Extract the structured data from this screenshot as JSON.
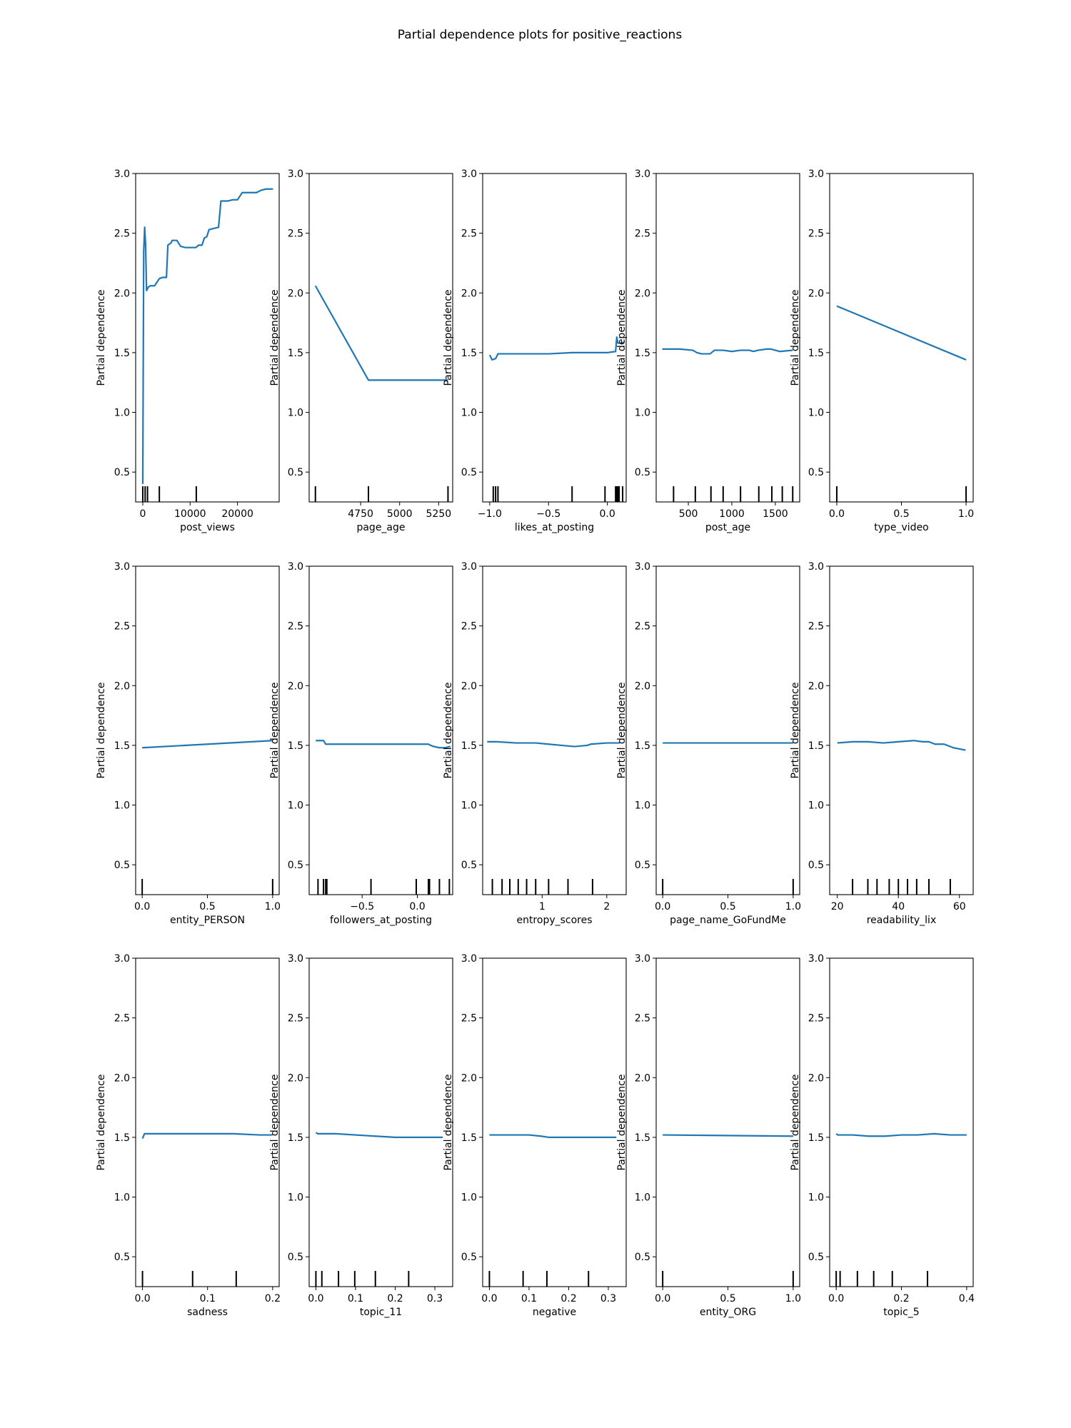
{
  "figure": {
    "title": "Partial dependence plots for positive_reactions",
    "line_color": "#1f77b4"
  },
  "chart_data": [
    {
      "type": "line",
      "xlabel": "post_views",
      "ylabel": "Partial dependence",
      "xlim": [
        -1500,
        28800
      ],
      "ylim": [
        0.25,
        3.0
      ],
      "xticks": [
        0,
        10000,
        20000
      ],
      "xtick_labels": [
        "0",
        "10000",
        "20000"
      ],
      "yticks": [
        0.5,
        1.0,
        1.5,
        2.0,
        2.5,
        3.0
      ],
      "ytick_labels": [
        "0.5",
        "1.0",
        "1.5",
        "2.0",
        "2.5",
        "3.0"
      ],
      "x": [
        0,
        200,
        400,
        600,
        800,
        1200,
        1600,
        2500,
        3500,
        4200,
        5000,
        5300,
        6000,
        6200,
        7200,
        8000,
        9000,
        10000,
        11200,
        11800,
        12500,
        13000,
        13500,
        14000,
        15000,
        16000,
        16500,
        17000,
        18000,
        19000,
        20000,
        21000,
        22000,
        23000,
        24000,
        25000,
        26000,
        27000,
        27500
      ],
      "y": [
        0.4,
        2.35,
        2.55,
        2.4,
        2.02,
        2.05,
        2.06,
        2.06,
        2.12,
        2.13,
        2.13,
        2.4,
        2.42,
        2.44,
        2.44,
        2.39,
        2.38,
        2.38,
        2.38,
        2.4,
        2.4,
        2.46,
        2.47,
        2.53,
        2.54,
        2.55,
        2.77,
        2.77,
        2.77,
        2.78,
        2.78,
        2.84,
        2.84,
        2.84,
        2.84,
        2.86,
        2.87,
        2.87,
        2.87
      ],
      "rug": [
        0,
        500,
        1000,
        3500,
        11300
      ]
    },
    {
      "type": "line",
      "xlabel": "page_age",
      "ylabel": "Partial dependence",
      "xlim": [
        4420,
        5340
      ],
      "ylim": [
        0.25,
        3.0
      ],
      "xticks": [
        4750,
        5000,
        5250
      ],
      "xtick_labels": [
        "4750",
        "5000",
        "5250"
      ],
      "yticks": [
        0.5,
        1.0,
        1.5,
        2.0,
        2.5,
        3.0
      ],
      "ytick_labels": [
        "0.5",
        "1.0",
        "1.5",
        "2.0",
        "2.5",
        "3.0"
      ],
      "x": [
        4460,
        4800,
        5310
      ],
      "y": [
        2.06,
        1.27,
        1.27
      ],
      "rug": [
        4460,
        4800,
        5310
      ]
    },
    {
      "type": "line",
      "xlabel": "likes_at_posting",
      "ylabel": "Partial dependence",
      "xlim": [
        -1.06,
        0.16
      ],
      "ylim": [
        0.25,
        3.0
      ],
      "xticks": [
        -1.0,
        -0.5,
        0.0
      ],
      "xtick_labels": [
        "−1.0",
        "−0.5",
        "0.0"
      ],
      "yticks": [
        0.5,
        1.0,
        1.5,
        2.0,
        2.5,
        3.0
      ],
      "ytick_labels": [
        "0.5",
        "1.0",
        "1.5",
        "2.0",
        "2.5",
        "3.0"
      ],
      "x": [
        -1.0,
        -0.98,
        -0.95,
        -0.93,
        -0.9,
        -0.5,
        -0.3,
        0.0,
        0.07,
        0.08,
        0.09,
        0.1,
        0.12,
        0.14
      ],
      "y": [
        1.48,
        1.44,
        1.45,
        1.49,
        1.49,
        1.49,
        1.5,
        1.5,
        1.51,
        1.63,
        1.58,
        1.58,
        1.58,
        1.59
      ],
      "rug": [
        -0.97,
        -0.95,
        -0.93,
        -0.3,
        -0.02,
        0.07,
        0.08,
        0.09,
        0.1,
        0.13
      ]
    },
    {
      "type": "line",
      "xlabel": "post_age",
      "ylabel": "Partial dependence",
      "xlim": [
        130,
        1780
      ],
      "ylim": [
        0.25,
        3.0
      ],
      "xticks": [
        500,
        1000,
        1500
      ],
      "xtick_labels": [
        "500",
        "1000",
        "1500"
      ],
      "yticks": [
        0.5,
        1.0,
        1.5,
        2.0,
        2.5,
        3.0
      ],
      "ytick_labels": [
        "0.5",
        "1.0",
        "1.5",
        "2.0",
        "2.5",
        "3.0"
      ],
      "x": [
        200,
        400,
        550,
        600,
        650,
        750,
        800,
        900,
        1000,
        1100,
        1200,
        1250,
        1300,
        1400,
        1450,
        1500,
        1550,
        1700
      ],
      "y": [
        1.53,
        1.53,
        1.52,
        1.5,
        1.49,
        1.49,
        1.52,
        1.52,
        1.51,
        1.52,
        1.52,
        1.51,
        1.52,
        1.53,
        1.53,
        1.52,
        1.51,
        1.52
      ],
      "rug": [
        330,
        580,
        760,
        900,
        1100,
        1310,
        1460,
        1580,
        1700
      ]
    },
    {
      "type": "line",
      "xlabel": "type_video",
      "ylabel": "Partial dependence",
      "xlim": [
        -0.055,
        1.055
      ],
      "ylim": [
        0.25,
        3.0
      ],
      "xticks": [
        0.0,
        0.5,
        1.0
      ],
      "xtick_labels": [
        "0.0",
        "0.5",
        "1.0"
      ],
      "yticks": [
        0.5,
        1.0,
        1.5,
        2.0,
        2.5,
        3.0
      ],
      "ytick_labels": [
        "0.5",
        "1.0",
        "1.5",
        "2.0",
        "2.5",
        "3.0"
      ],
      "x": [
        0.0,
        1.0
      ],
      "y": [
        1.89,
        1.44
      ],
      "rug": [
        0.0,
        1.0
      ]
    },
    {
      "type": "line",
      "xlabel": "entity_PERSON",
      "ylabel": "Partial dependence",
      "xlim": [
        -0.05,
        1.05
      ],
      "ylim": [
        0.25,
        3.0
      ],
      "xticks": [
        0.0,
        0.5,
        1.0
      ],
      "xtick_labels": [
        "0.0",
        "0.5",
        "1.0"
      ],
      "yticks": [
        0.5,
        1.0,
        1.5,
        2.0,
        2.5,
        3.0
      ],
      "ytick_labels": [
        "0.5",
        "1.0",
        "1.5",
        "2.0",
        "2.5",
        "3.0"
      ],
      "x": [
        0.0,
        1.0
      ],
      "y": [
        1.48,
        1.54
      ],
      "rug": [
        0.0,
        1.0
      ]
    },
    {
      "type": "line",
      "xlabel": "followers_at_posting",
      "ylabel": "Partial dependence",
      "xlim": [
        -0.98,
        0.32
      ],
      "ylim": [
        0.25,
        3.0
      ],
      "xticks": [
        -0.5,
        0.0
      ],
      "xtick_labels": [
        "−0.5",
        "0.0"
      ],
      "yticks": [
        0.5,
        1.0,
        1.5,
        2.0,
        2.5,
        3.0
      ],
      "ytick_labels": [
        "0.5",
        "1.0",
        "1.5",
        "2.0",
        "2.5",
        "3.0"
      ],
      "x": [
        -0.92,
        -0.85,
        -0.83,
        -0.6,
        -0.4,
        -0.2,
        0.0,
        0.1,
        0.12,
        0.15,
        0.2,
        0.25,
        0.3
      ],
      "y": [
        1.54,
        1.54,
        1.51,
        1.51,
        1.51,
        1.51,
        1.51,
        1.51,
        1.5,
        1.49,
        1.48,
        1.48,
        1.49
      ],
      "rug": [
        -0.9,
        -0.85,
        -0.83,
        -0.82,
        -0.42,
        -0.01,
        0.1,
        0.11,
        0.2,
        0.29
      ]
    },
    {
      "type": "line",
      "xlabel": "entropy_scores",
      "ylabel": "Partial dependence",
      "xlim": [
        0.08,
        2.3
      ],
      "ylim": [
        0.25,
        3.0
      ],
      "xticks": [
        1,
        2
      ],
      "xtick_labels": [
        "1",
        "2"
      ],
      "yticks": [
        0.5,
        1.0,
        1.5,
        2.0,
        2.5,
        3.0
      ],
      "ytick_labels": [
        "0.5",
        "1.0",
        "1.5",
        "2.0",
        "2.5",
        "3.0"
      ],
      "x": [
        0.15,
        0.3,
        0.6,
        0.9,
        1.1,
        1.3,
        1.5,
        1.7,
        1.75,
        2.0,
        2.2
      ],
      "y": [
        1.53,
        1.53,
        1.52,
        1.52,
        1.51,
        1.5,
        1.49,
        1.5,
        1.51,
        1.52,
        1.52
      ],
      "rug": [
        0.23,
        0.38,
        0.5,
        0.63,
        0.76,
        0.9,
        1.1,
        1.4,
        1.78
      ]
    },
    {
      "type": "line",
      "xlabel": "page_name_GoFundMe",
      "ylabel": "Partial dependence",
      "xlim": [
        -0.05,
        1.05
      ],
      "ylim": [
        0.25,
        3.0
      ],
      "xticks": [
        0.0,
        0.5,
        1.0
      ],
      "xtick_labels": [
        "0.0",
        "0.5",
        "1.0"
      ],
      "yticks": [
        0.5,
        1.0,
        1.5,
        2.0,
        2.5,
        3.0
      ],
      "ytick_labels": [
        "0.5",
        "1.0",
        "1.5",
        "2.0",
        "2.5",
        "3.0"
      ],
      "x": [
        0.0,
        1.0
      ],
      "y": [
        1.52,
        1.52
      ],
      "rug": [
        0.0,
        1.0
      ]
    },
    {
      "type": "line",
      "xlabel": "readability_lix",
      "ylabel": "Partial dependence",
      "xlim": [
        17.5,
        64.5
      ],
      "ylim": [
        0.25,
        3.0
      ],
      "xticks": [
        20,
        40,
        60
      ],
      "xtick_labels": [
        "20",
        "40",
        "60"
      ],
      "yticks": [
        0.5,
        1.0,
        1.5,
        2.0,
        2.5,
        3.0
      ],
      "ytick_labels": [
        "0.5",
        "1.0",
        "1.5",
        "2.0",
        "2.5",
        "3.0"
      ],
      "x": [
        20,
        25,
        30,
        35,
        40,
        45,
        48,
        50,
        52,
        55,
        58,
        60,
        62
      ],
      "y": [
        1.52,
        1.53,
        1.53,
        1.52,
        1.53,
        1.54,
        1.53,
        1.53,
        1.51,
        1.51,
        1.48,
        1.47,
        1.46
      ],
      "rug": [
        25,
        30,
        33,
        37,
        40,
        43,
        46,
        50,
        57
      ]
    },
    {
      "type": "line",
      "xlabel": "sadness",
      "ylabel": "Partial dependence",
      "xlim": [
        -0.0105,
        0.21
      ],
      "ylim": [
        0.25,
        3.0
      ],
      "xticks": [
        0.0,
        0.1,
        0.2
      ],
      "xtick_labels": [
        "0.0",
        "0.1",
        "0.2"
      ],
      "yticks": [
        0.5,
        1.0,
        1.5,
        2.0,
        2.5,
        3.0
      ],
      "ytick_labels": [
        "0.5",
        "1.0",
        "1.5",
        "2.0",
        "2.5",
        "3.0"
      ],
      "x": [
        0.0,
        0.003,
        0.05,
        0.1,
        0.14,
        0.18,
        0.2
      ],
      "y": [
        1.49,
        1.53,
        1.53,
        1.53,
        1.53,
        1.52,
        1.52
      ],
      "rug": [
        0.0,
        0.077,
        0.144
      ]
    },
    {
      "type": "line",
      "xlabel": "topic_11",
      "ylabel": "Partial dependence",
      "xlim": [
        -0.017,
        0.345
      ],
      "ylim": [
        0.25,
        3.0
      ],
      "xticks": [
        0.0,
        0.1,
        0.2,
        0.3
      ],
      "xtick_labels": [
        "0.0",
        "0.1",
        "0.2",
        "0.3"
      ],
      "yticks": [
        0.5,
        1.0,
        1.5,
        2.0,
        2.5,
        3.0
      ],
      "ytick_labels": [
        "0.5",
        "1.0",
        "1.5",
        "2.0",
        "2.5",
        "3.0"
      ],
      "x": [
        0.0,
        0.005,
        0.05,
        0.1,
        0.15,
        0.2,
        0.25,
        0.32
      ],
      "y": [
        1.54,
        1.53,
        1.53,
        1.52,
        1.51,
        1.5,
        1.5,
        1.5
      ],
      "rug": [
        0.0,
        0.015,
        0.057,
        0.098,
        0.15,
        0.234
      ]
    },
    {
      "type": "line",
      "xlabel": "negative",
      "ylabel": "Partial dependence",
      "xlim": [
        -0.017,
        0.345
      ],
      "ylim": [
        0.25,
        3.0
      ],
      "xticks": [
        0.0,
        0.1,
        0.2,
        0.3
      ],
      "xtick_labels": [
        "0.0",
        "0.1",
        "0.2",
        "0.3"
      ],
      "yticks": [
        0.5,
        1.0,
        1.5,
        2.0,
        2.5,
        3.0
      ],
      "ytick_labels": [
        "0.5",
        "1.0",
        "1.5",
        "2.0",
        "2.5",
        "3.0"
      ],
      "x": [
        0.0,
        0.05,
        0.1,
        0.13,
        0.15,
        0.2,
        0.25,
        0.32
      ],
      "y": [
        1.52,
        1.52,
        1.52,
        1.51,
        1.5,
        1.5,
        1.5,
        1.5
      ],
      "rug": [
        0.0,
        0.085,
        0.145,
        0.25
      ]
    },
    {
      "type": "line",
      "xlabel": "entity_ORG",
      "ylabel": "Partial dependence",
      "xlim": [
        -0.05,
        1.05
      ],
      "ylim": [
        0.25,
        3.0
      ],
      "xticks": [
        0.0,
        0.5,
        1.0
      ],
      "xtick_labels": [
        "0.0",
        "0.5",
        "1.0"
      ],
      "yticks": [
        0.5,
        1.0,
        1.5,
        2.0,
        2.5,
        3.0
      ],
      "ytick_labels": [
        "0.5",
        "1.0",
        "1.5",
        "2.0",
        "2.5",
        "3.0"
      ],
      "x": [
        0.0,
        1.0
      ],
      "y": [
        1.52,
        1.51
      ],
      "rug": [
        0.0,
        1.0
      ]
    },
    {
      "type": "line",
      "xlabel": "topic_5",
      "ylabel": "Partial dependence",
      "xlim": [
        -0.02,
        0.42
      ],
      "ylim": [
        0.25,
        3.0
      ],
      "xticks": [
        0.0,
        0.2,
        0.4
      ],
      "xtick_labels": [
        "0.0",
        "0.2",
        "0.4"
      ],
      "yticks": [
        0.5,
        1.0,
        1.5,
        2.0,
        2.5,
        3.0
      ],
      "ytick_labels": [
        "0.5",
        "1.0",
        "1.5",
        "2.0",
        "2.5",
        "3.0"
      ],
      "x": [
        0.0,
        0.005,
        0.05,
        0.1,
        0.15,
        0.2,
        0.25,
        0.3,
        0.35,
        0.4
      ],
      "y": [
        1.53,
        1.52,
        1.52,
        1.51,
        1.51,
        1.52,
        1.52,
        1.53,
        1.52,
        1.52
      ],
      "rug": [
        0.0,
        0.012,
        0.065,
        0.115,
        0.172,
        0.28
      ]
    }
  ]
}
